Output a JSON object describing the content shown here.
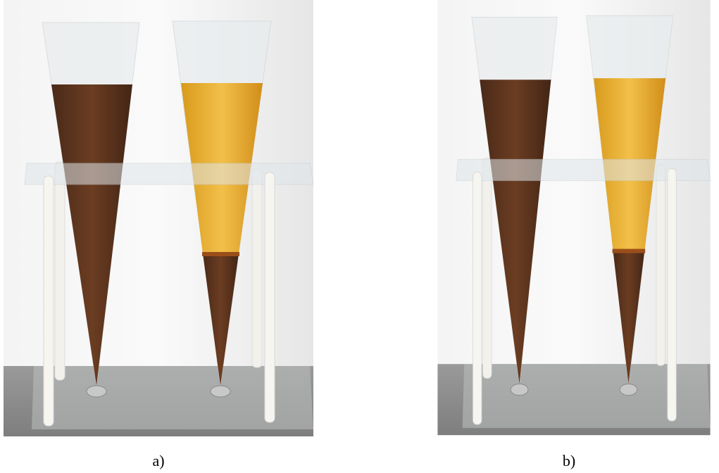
{
  "figure": {
    "panels": [
      {
        "label": "a)"
      },
      {
        "label": "b)"
      }
    ]
  }
}
